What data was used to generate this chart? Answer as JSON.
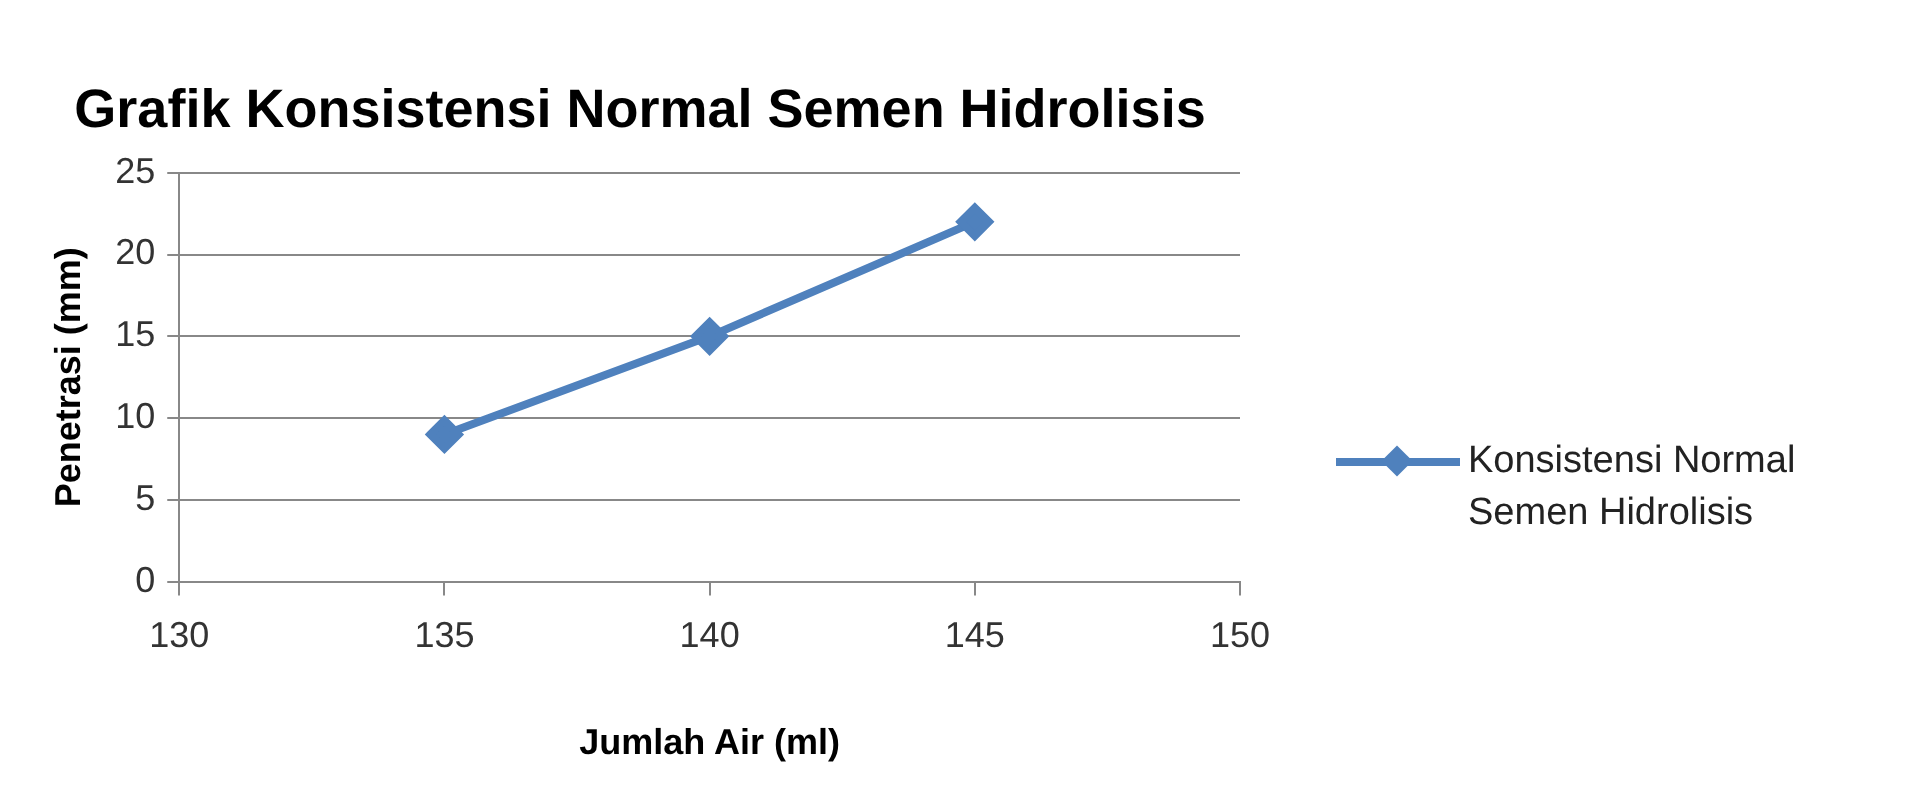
{
  "chart_data": {
    "type": "line",
    "title": "Grafik Konsistensi Normal Semen Hidrolisis",
    "xlabel": "Jumlah Air (ml)",
    "ylabel": "Penetrasi (mm)",
    "x": [
      135,
      140,
      145
    ],
    "series": [
      {
        "name": "Konsistensi Normal Semen Hidrolisis",
        "color": "#4f81bd",
        "values": [
          9,
          15,
          22
        ]
      }
    ],
    "xlim": [
      130,
      150
    ],
    "xticks": [
      130,
      135,
      140,
      145,
      150
    ],
    "ylim": [
      0,
      25
    ],
    "yticks": [
      0,
      5,
      10,
      15,
      20,
      25
    ],
    "grid": "y",
    "legend": "right",
    "marker": "diamond",
    "line_style": "solid"
  }
}
